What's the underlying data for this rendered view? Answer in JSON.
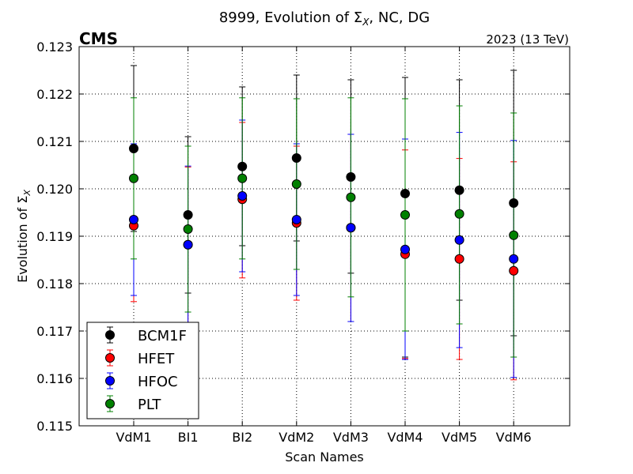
{
  "chart_data": {
    "type": "scatter",
    "title": "8999, Evolution of Σ",
    "title_subscript": "X",
    "title_suffix": ", NC, DG",
    "xlabel": "Scan Names",
    "ylabel": "Evolution of Σ",
    "ylabel_subscript": "X",
    "experiment_label": "CMS",
    "energy_label": "2023 (13 TeV)",
    "categories": [
      "VdM1",
      "BI1",
      "BI2",
      "VdM2",
      "VdM3",
      "VdM4",
      "VdM5",
      "VdM6"
    ],
    "ylim": [
      0.115,
      0.123
    ],
    "yticks": [
      0.115,
      0.116,
      0.117,
      0.118,
      0.119,
      0.12,
      0.121,
      0.122,
      0.123
    ],
    "ytick_labels": [
      "0.115",
      "0.116",
      "0.117",
      "0.118",
      "0.119",
      "0.120",
      "0.121",
      "0.122",
      "0.123"
    ],
    "grid": true,
    "legend_position": "lower-left",
    "series": [
      {
        "name": "BCM1F",
        "color": "#000000",
        "values": [
          0.12085,
          0.11945,
          0.12047,
          0.12065,
          0.12025,
          0.1199,
          0.11997,
          0.1197
        ],
        "err_low": [
          0.1191,
          0.1178,
          0.1188,
          0.1189,
          0.11822,
          0.11645,
          0.11765,
          0.1169
        ],
        "err_high": [
          0.1226,
          0.1211,
          0.12215,
          0.1224,
          0.1223,
          0.12235,
          0.1223,
          0.1225
        ]
      },
      {
        "name": "HFET",
        "color": "#ff0000",
        "values": [
          0.11922,
          0.11882,
          0.11978,
          0.11928,
          0.11918,
          0.11862,
          0.11852,
          0.11827
        ],
        "err_low": [
          0.11762,
          0.11712,
          0.11812,
          0.11765,
          0.1172,
          0.11642,
          0.1164,
          0.11597
        ],
        "err_high": [
          0.12082,
          0.12046,
          0.1214,
          0.1209,
          0.12115,
          0.12082,
          0.12064,
          0.12057
        ]
      },
      {
        "name": "HFOC",
        "color": "#0000ff",
        "values": [
          0.11935,
          0.11882,
          0.11985,
          0.11935,
          0.11918,
          0.11872,
          0.11892,
          0.11852
        ],
        "err_low": [
          0.11775,
          0.11715,
          0.11825,
          0.11775,
          0.1172,
          0.1164,
          0.11665,
          0.11602
        ],
        "err_high": [
          0.12095,
          0.12048,
          0.12145,
          0.12095,
          0.12115,
          0.12105,
          0.12119,
          0.12102
        ]
      },
      {
        "name": "PLT",
        "color": "#008000",
        "values": [
          0.12022,
          0.11915,
          0.12022,
          0.1201,
          0.11982,
          0.11945,
          0.11947,
          0.11902
        ],
        "err_low": [
          0.11852,
          0.1174,
          0.11852,
          0.1183,
          0.11772,
          0.117,
          0.11715,
          0.11645
        ],
        "err_high": [
          0.12192,
          0.1209,
          0.12192,
          0.1219,
          0.12192,
          0.1219,
          0.12175,
          0.1216
        ]
      }
    ]
  }
}
